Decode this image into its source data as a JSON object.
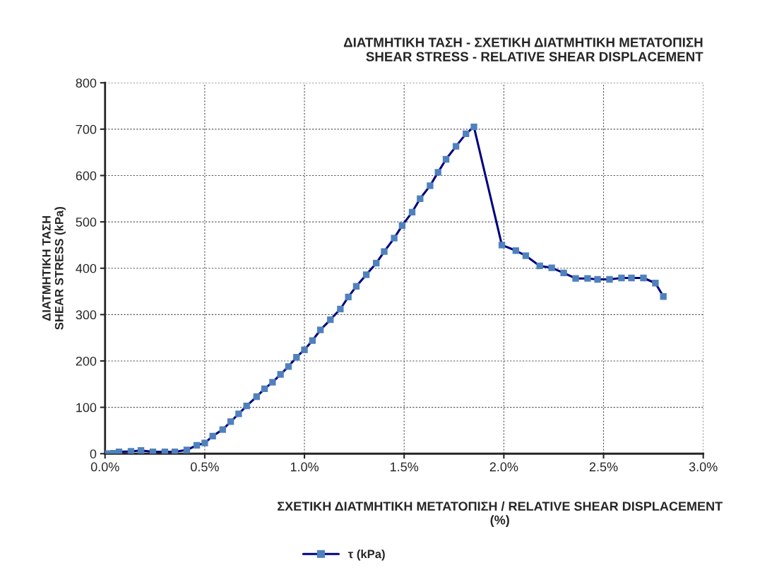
{
  "chart_data": {
    "type": "line",
    "title": "ΔΙΑΤΜΗΤΙΚΗ ΤΑΣΗ - ΣΧΕΤΙΚΗ ΔΙΑΤΜΗΤΙΚΗ ΜΕΤΑΤΟΠΙΣΗ\nSHEAR STRESS - RELATIVE SHEAR DISPLACEMENT",
    "xlabel": "ΣΧΕΤΙΚΗ ΔΙΑΤΜΗΤΙΚΗ ΜΕΤΑΤΟΠΙΣΗ / RELATIVE SHEAR DISPLACEMENT\n(%)",
    "ylabel": "ΔΙΑΤΜΗΤΙΚΗ ΤΑΣΗ\nSHEAR STRESS (kPa)",
    "x": [
      0.007,
      0.04,
      0.07,
      0.13,
      0.18,
      0.24,
      0.3,
      0.35,
      0.41,
      0.46,
      0.5,
      0.54,
      0.59,
      0.63,
      0.67,
      0.71,
      0.76,
      0.8,
      0.84,
      0.88,
      0.92,
      0.96,
      1.0,
      1.04,
      1.08,
      1.13,
      1.18,
      1.22,
      1.26,
      1.31,
      1.36,
      1.4,
      1.45,
      1.49,
      1.54,
      1.58,
      1.63,
      1.67,
      1.71,
      1.76,
      1.81,
      1.85,
      1.99,
      2.06,
      2.11,
      2.18,
      2.24,
      2.3,
      2.36,
      2.42,
      2.47,
      2.53,
      2.59,
      2.64,
      2.7,
      2.76,
      2.8
    ],
    "series": [
      {
        "name": "τ (kPa)",
        "color": "#000080",
        "colors": [
          "#4f81bd",
          "#4f81bd",
          "#4f81bd",
          "#4f81bd",
          "#4f81bd",
          "#4f81bd",
          "#4f81bd",
          "#4f81bd",
          "#4f81bd",
          "#4f81bd",
          "#4f81bd",
          "#4f81bd",
          "#4f81bd",
          "#4f81bd",
          "#4f81bd",
          "#4f81bd",
          "#4f81bd",
          "#4f81bd",
          "#4f81bd",
          "#4f81bd",
          "#4f81bd",
          "#4f81bd",
          "#4f81bd",
          "#4f81bd",
          "#4f81bd",
          "#4f81bd",
          "#4f81bd",
          "#4f81bd",
          "#4f81bd",
          "#4f81bd",
          "#4f81bd",
          "#4f81bd",
          "#4f81bd",
          "#4f81bd",
          "#4f81bd",
          "#4f81bd",
          "#4f81bd",
          "#4f81bd",
          "#4f81bd",
          "#4f81bd",
          "#4f81bd",
          "#4f81bd",
          "#4f81bd",
          "#4f81bd",
          "#4f81bd",
          "#4f81bd",
          "#4f81bd",
          "#4f81bd",
          "#4f81bd",
          "#4f81bd",
          "#4f81bd",
          "#4f81bd",
          "#4f81bd",
          "#4f81bd",
          "#4f81bd",
          "#4f81bd",
          "#4f81bd"
        ],
        "values": [
          0,
          1,
          4,
          5,
          7,
          4,
          4,
          4,
          8,
          18,
          23,
          38,
          52,
          69,
          86,
          103,
          123,
          140,
          154,
          171,
          188,
          208,
          224,
          244,
          267,
          289,
          312,
          338,
          361,
          386,
          411,
          436,
          465,
          492,
          521,
          550,
          578,
          607,
          635,
          663,
          690,
          705,
          450,
          438,
          427,
          405,
          401,
          390,
          378,
          378,
          376,
          376,
          379,
          379,
          379,
          368,
          339
        ]
      }
    ],
    "xlim": [
      0,
      3.0
    ],
    "xticks": [
      {
        "value": 0,
        "label": "0.0%"
      },
      {
        "value": 0.5,
        "label": "0.5%"
      },
      {
        "value": 1.0,
        "label": "1.0%"
      },
      {
        "value": 1.5,
        "label": "1.5%"
      },
      {
        "value": 2.0,
        "label": "2.0%"
      },
      {
        "value": 2.5,
        "label": "2.5%"
      },
      {
        "value": 3.0,
        "label": "3.0%"
      }
    ],
    "ylim": [
      0,
      800
    ],
    "yticks": [
      0,
      100,
      200,
      300,
      400,
      500,
      600,
      700,
      800
    ],
    "grid": true,
    "legend": "bottom",
    "marker": "square",
    "line_style": "solid"
  }
}
